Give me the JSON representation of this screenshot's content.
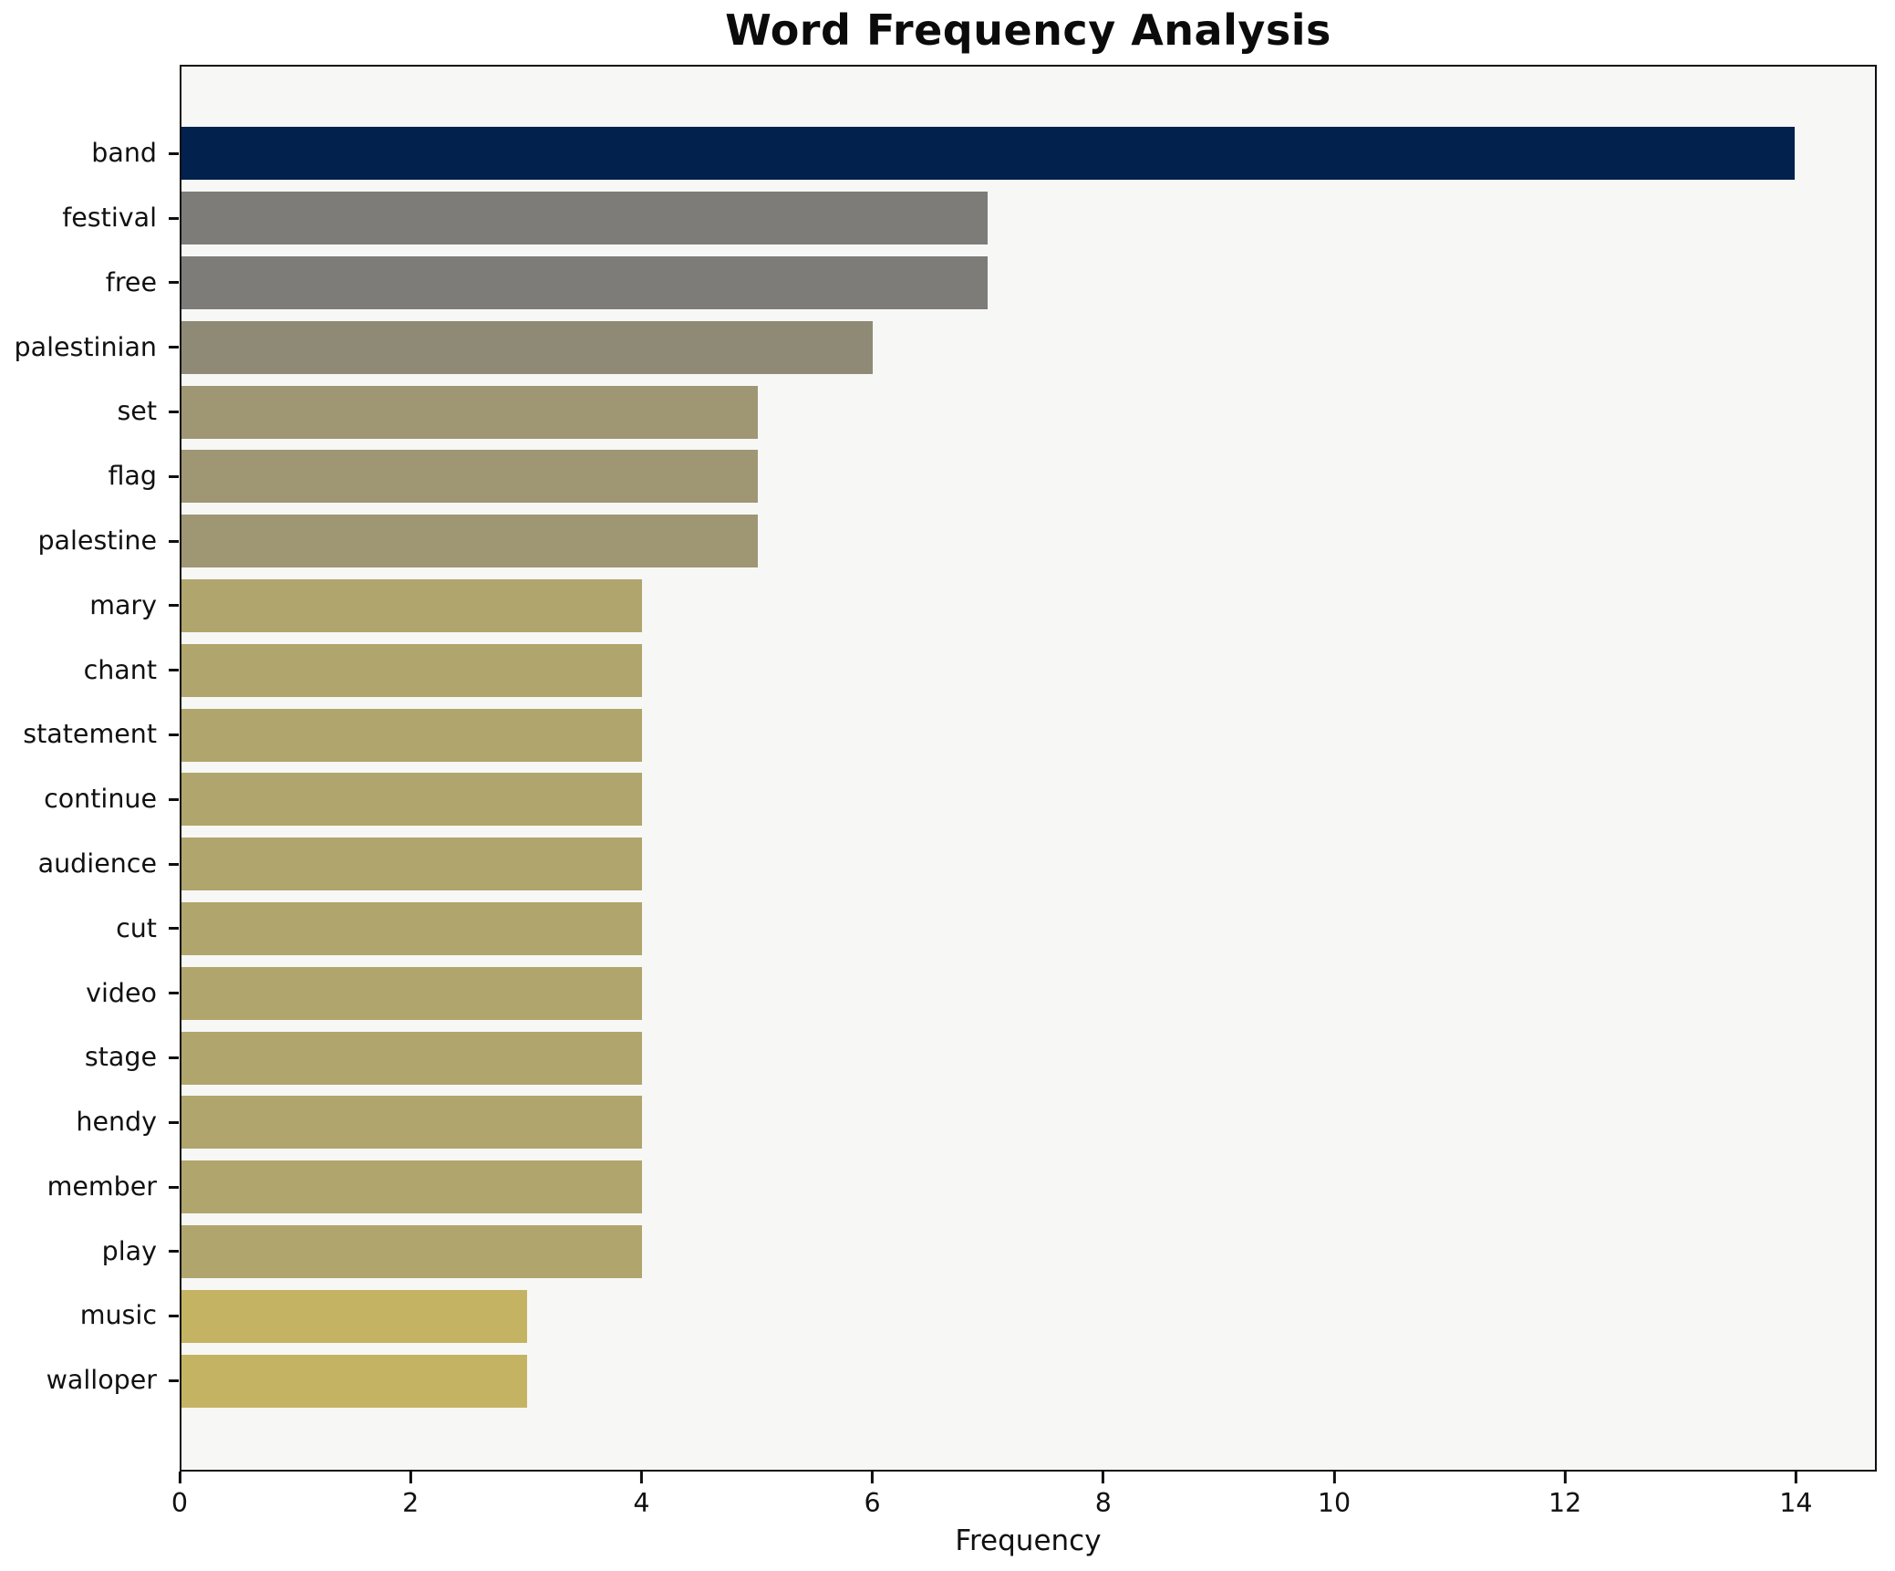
{
  "chart_data": {
    "type": "bar",
    "orientation": "horizontal",
    "title": "Word Frequency Analysis",
    "xlabel": "Frequency",
    "ylabel": "",
    "categories": [
      "band",
      "festival",
      "free",
      "palestinian",
      "set",
      "flag",
      "palestine",
      "mary",
      "chant",
      "statement",
      "continue",
      "audience",
      "cut",
      "video",
      "stage",
      "hendy",
      "member",
      "play",
      "music",
      "walloper"
    ],
    "values": [
      14,
      7,
      7,
      6,
      5,
      5,
      5,
      4,
      4,
      4,
      4,
      4,
      4,
      4,
      4,
      4,
      4,
      4,
      3,
      3
    ],
    "bar_colors": [
      "#02214d",
      "#7d7c78",
      "#7d7c78",
      "#8f8a76",
      "#9f9673",
      "#9f9673",
      "#9f9673",
      "#b0a56c",
      "#b0a56c",
      "#b0a56c",
      "#b0a56c",
      "#b0a56c",
      "#b0a56c",
      "#b0a56c",
      "#b0a56c",
      "#b0a56c",
      "#b0a56c",
      "#b0a56c",
      "#c5b364",
      "#c5b364"
    ],
    "x_ticks": [
      0,
      2,
      4,
      6,
      8,
      10,
      12,
      14
    ],
    "xlim": [
      0,
      14.7
    ],
    "grid": false,
    "legend": "none",
    "plot_background": "#f7f7f6",
    "figure_background": "#ffffff",
    "spine_color": "#0f0f0f",
    "top_bar_color": "#02214d",
    "bottom_bar_color": "#c5b364"
  }
}
